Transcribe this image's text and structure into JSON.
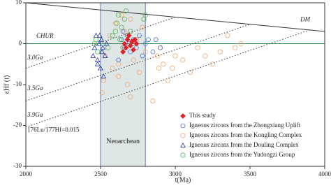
{
  "chart_data": {
    "type": "scatter",
    "xlabel": "t(Ma)",
    "ylabel": "εHf (t)",
    "xlim": [
      2000,
      4000
    ],
    "ylim": [
      -30,
      10
    ],
    "xticks": [
      2000,
      2500,
      3000,
      3500,
      4000
    ],
    "yticks": [
      -30,
      -20,
      -10,
      0,
      10
    ],
    "legend": "lower right",
    "shaded_region": {
      "label": "Neoarchean",
      "x": [
        2500,
        2800
      ],
      "color": "#dfe6e6"
    },
    "reference_lines": [
      {
        "label": "DM",
        "x": [
          2000,
          4000
        ],
        "y": [
          10,
          3
        ],
        "style": "solid",
        "color": "#333333"
      },
      {
        "label": "CHUR",
        "x": [
          2000,
          4000
        ],
        "y": [
          0,
          0
        ],
        "style": "solid",
        "color": "#2e8b57"
      },
      {
        "label": "3.0Ga",
        "x": [
          2000,
          3000
        ],
        "y": [
          -6,
          6.5
        ],
        "style": "dotted",
        "color": "#333333"
      },
      {
        "label": "3.5Ga",
        "x": [
          2000,
          3500
        ],
        "y": [
          -14,
          4.75
        ],
        "style": "dotted",
        "color": "#333333"
      },
      {
        "label": "3.9Ga",
        "x": [
          2000,
          3900
        ],
        "y": [
          -20.4,
          3.35
        ],
        "style": "dotted",
        "color": "#333333"
      }
    ],
    "annotation": "176Lu/177Hf=0.015",
    "series": [
      {
        "name": "Igneous zircons from the Kongling Complex",
        "marker": "circle",
        "color": "#f0a878",
        "x": [
          2510,
          2530,
          2560,
          2580,
          2600,
          2620,
          2640,
          2660,
          2680,
          2700,
          2720,
          2740,
          2760,
          2780,
          2800,
          2850,
          2880,
          2900,
          2920,
          2950,
          2980,
          3000,
          3050,
          3100,
          3150,
          3200,
          3250,
          3300,
          3350,
          3400,
          2520,
          2700,
          2620,
          2890,
          3440
        ],
        "values": [
          -12,
          -3,
          2,
          -6,
          5,
          -8,
          7,
          3,
          -10,
          6,
          -4,
          1,
          -7,
          4,
          -2,
          -14,
          -3,
          -1,
          -5,
          -9,
          -6,
          -3,
          -4,
          -7,
          -1,
          -3,
          -5,
          -2,
          2,
          -1,
          -9,
          -13,
          -5,
          -6,
          0
        ]
      },
      {
        "name": "Igneous zircons from the Zhongxiang Uplift",
        "marker": "hexagon",
        "color": "#5577cc",
        "x": [
          2640,
          2660,
          2680,
          2690,
          2700,
          2720,
          2740,
          2760,
          2780,
          2800,
          2820,
          2850,
          2870,
          2900,
          2620,
          2650
        ],
        "values": [
          1,
          -1,
          2,
          0,
          -2,
          1,
          -1,
          2,
          -3,
          0,
          1,
          -2,
          1,
          -1,
          -4,
          3
        ]
      },
      {
        "name": "Igneous zircons from  the Douling Complex",
        "marker": "triangle",
        "color": "#2233aa",
        "x": [
          2460,
          2470,
          2480,
          2490,
          2500,
          2505,
          2510,
          2520,
          2530,
          2540,
          2480,
          2495,
          2515,
          2450
        ],
        "values": [
          -1,
          2,
          -4,
          0,
          -6,
          1,
          -2,
          -8,
          -3,
          0,
          -5,
          2,
          -1,
          -3
        ]
      },
      {
        "name": "Igneous zircons from the Yudongzi Group",
        "marker": "circle",
        "color": "#55b055",
        "x": [
          2460,
          2480,
          2600,
          2610,
          2620,
          2630,
          2640,
          2650,
          2660,
          2670,
          2680,
          2700,
          2720,
          2790,
          2800,
          2550,
          2580,
          2470
        ],
        "values": [
          0,
          -2,
          3,
          5,
          7,
          1,
          4,
          -1,
          6,
          8,
          2,
          3,
          0,
          6,
          7,
          -1,
          2,
          1
        ]
      },
      {
        "name": "This study",
        "marker": "diamond",
        "color": "#e0202a",
        "x": [
          2660,
          2670,
          2680,
          2690,
          2700,
          2710,
          2720,
          2730,
          2740,
          2650
        ],
        "values": [
          0,
          -1,
          1,
          2,
          -0.5,
          0.5,
          -1.5,
          1,
          0,
          -2
        ]
      }
    ]
  }
}
